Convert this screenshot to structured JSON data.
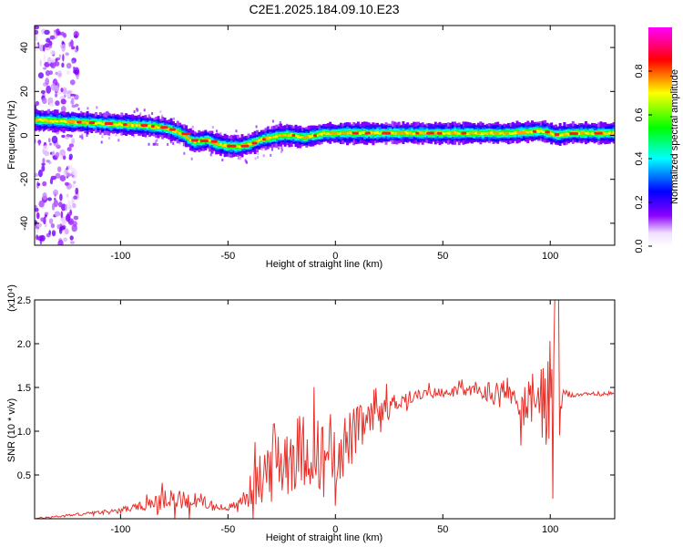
{
  "title": "C2E1.2025.184.09.10.E23",
  "chart_data": [
    {
      "type": "heatmap",
      "xlabel": "Height of straight line (km)",
      "ylabel": "Frequency (Hz)",
      "xlim": [
        -140,
        130
      ],
      "ylim": [
        -50,
        50
      ],
      "xticks": [
        -100,
        -50,
        0,
        50,
        100
      ],
      "yticks": [
        -40,
        -20,
        0,
        20,
        40
      ],
      "colorbar": {
        "label": "Normalized spectral amplitude",
        "ticks": [
          0.0,
          0.2,
          0.4,
          0.6,
          0.8
        ],
        "range": [
          0,
          1
        ],
        "colormap": [
          "#ffffff",
          "#8b00ff",
          "#0000ff",
          "#00ffff",
          "#00ff00",
          "#ffff00",
          "#ff0000",
          "#ff00ff"
        ]
      },
      "ridge": {
        "x": [
          -140,
          -130,
          -120,
          -110,
          -100,
          -90,
          -80,
          -72,
          -66,
          -60,
          -55,
          -50,
          -45,
          -40,
          -35,
          -30,
          -25,
          -20,
          -15,
          -10,
          -5,
          0,
          10,
          20,
          40,
          60,
          80,
          95,
          100,
          103,
          110,
          130
        ],
        "y": [
          7,
          6.5,
          6,
          5.5,
          5,
          4.5,
          3.5,
          1,
          -3,
          -2,
          -4,
          -5,
          -5,
          -4,
          -2,
          -1,
          0,
          0,
          -1,
          0,
          1,
          1,
          1,
          1,
          1,
          1,
          1,
          2,
          1,
          0,
          1,
          1
        ]
      },
      "grid": false
    },
    {
      "type": "line",
      "xlabel": "Height of straight line (km)",
      "ylabel": "SNR (10 * v/v)",
      "y_multiplier_label": "(x10⁴)",
      "xlim": [
        -140,
        130
      ],
      "ylim": [
        0,
        2.5
      ],
      "xticks": [
        -100,
        -50,
        0,
        50,
        100
      ],
      "yticks": [
        0.5,
        1.0,
        1.5,
        2.0,
        2.5
      ],
      "series": [
        {
          "color": "#e8302a",
          "trend": {
            "x": [
              -140,
              -120,
              -105,
              -95,
              -85,
              -75,
              -65,
              -55,
              -50,
              -45,
              -40,
              -35,
              -30,
              -25,
              -20,
              -15,
              -10,
              -5,
              0,
              5,
              10,
              15,
              20,
              25,
              30,
              35,
              40,
              50,
              60,
              70,
              80,
              90,
              95,
              100,
              103,
              105,
              110,
              120,
              130
            ],
            "y": [
              0.0,
              0.05,
              0.08,
              0.12,
              0.17,
              0.22,
              0.22,
              0.13,
              0.12,
              0.18,
              0.3,
              0.45,
              0.6,
              0.7,
              0.75,
              0.8,
              0.75,
              0.75,
              0.8,
              0.85,
              1.0,
              1.1,
              1.2,
              1.3,
              1.35,
              1.4,
              1.42,
              1.45,
              1.46,
              1.45,
              1.44,
              1.3,
              1.35,
              1.4,
              1.2,
              1.42,
              1.42,
              1.42,
              1.43
            ]
          },
          "noise_amplitude": {
            "x": [
              -140,
              -110,
              -90,
              -80,
              -70,
              -60,
              -55,
              -50,
              -45,
              -35,
              -30,
              -20,
              -10,
              0,
              10,
              20,
              30,
              40,
              60,
              70,
              80,
              90,
              95,
              100,
              103,
              106,
              115,
              130
            ],
            "y": [
              0.01,
              0.02,
              0.05,
              0.12,
              0.12,
              0.08,
              0.04,
              0.04,
              0.06,
              0.3,
              0.55,
              0.45,
              0.4,
              0.45,
              0.3,
              0.15,
              0.1,
              0.06,
              0.06,
              0.12,
              0.2,
              0.3,
              0.45,
              0.7,
              1.1,
              0.05,
              0.02,
              0.02
            ]
          }
        }
      ],
      "grid": false
    }
  ]
}
